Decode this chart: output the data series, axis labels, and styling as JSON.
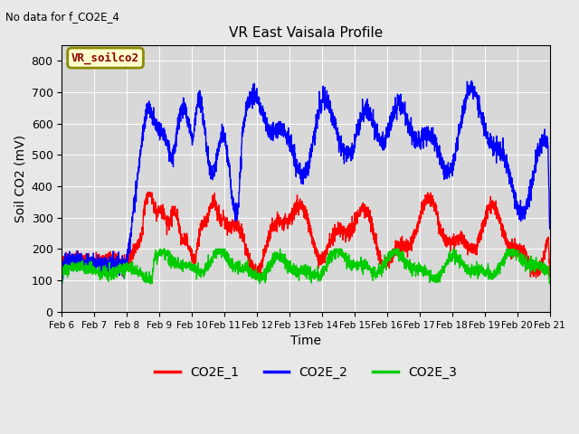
{
  "title": "VR East Vaisala Profile",
  "subtitle": "No data for f_CO2E_4",
  "xlabel": "Time",
  "ylabel": "Soil CO2 (mV)",
  "ylim": [
    0,
    850
  ],
  "legend_box_label": "VR_soilco2",
  "legend_entries": [
    "CO2E_1",
    "CO2E_2",
    "CO2E_3"
  ],
  "colors": {
    "CO2E_1": "#ff0000",
    "CO2E_2": "#0000ff",
    "CO2E_3": "#00cc00"
  },
  "tick_labels": [
    "Feb 6",
    "Feb 7",
    "Feb 8",
    "Feb 9",
    "Feb 10",
    "Feb 11",
    "Feb 12",
    "Feb 13",
    "Feb 14",
    "Feb 15",
    "Feb 16",
    "Feb 17",
    "Feb 18",
    "Feb 19",
    "Feb 20",
    "Feb 21"
  ],
  "yticks": [
    0,
    100,
    200,
    300,
    400,
    500,
    600,
    700,
    800
  ],
  "bg_color": "#e8e8e8",
  "plot_bg_color": "#d8d8d8",
  "grid_color": "#ffffff",
  "linewidth": 1.0
}
